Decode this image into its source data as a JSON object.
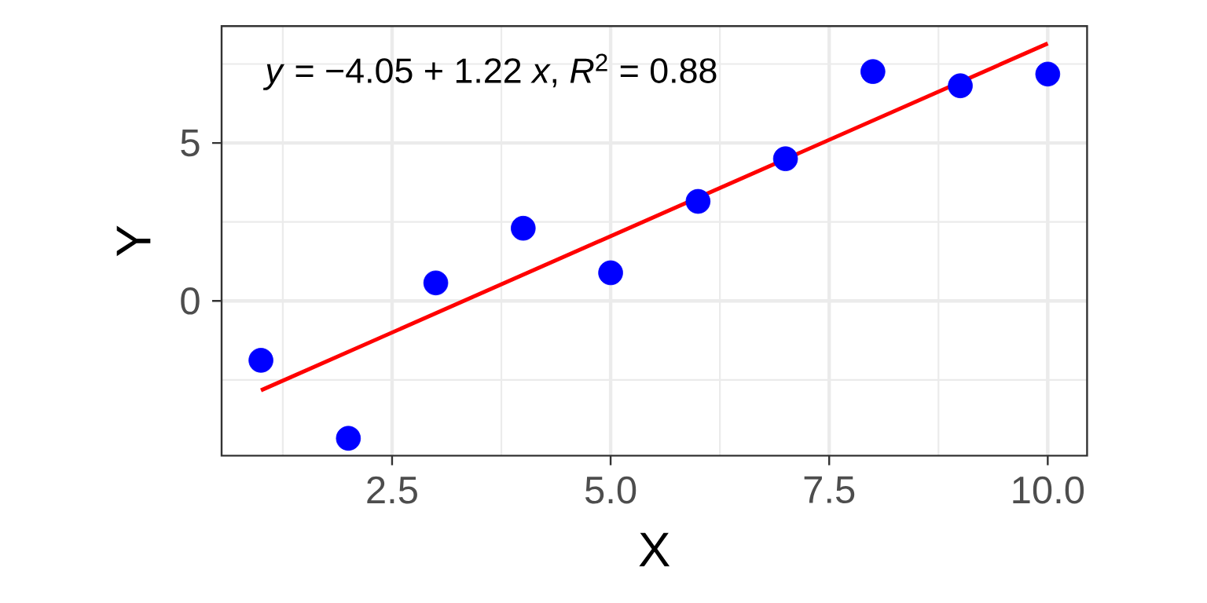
{
  "chart_data": {
    "type": "scatter",
    "xlabel": "X",
    "ylabel": "Y",
    "annotations": [
      "*y* = −4.05 + 1.22 *x*, *R*$^{2}$ = 0.88"
    ],
    "xlim": [
      0.55,
      10.45
    ],
    "ylim": [
      -4.9,
      8.7
    ],
    "xticks": [
      2.5,
      {
        "value": 5,
        "label": "5.0"
      },
      7.5,
      {
        "value": 10,
        "label": "10.0"
      }
    ],
    "yticks": [
      0,
      5
    ],
    "grid": true,
    "marker": "circle",
    "series": [
      {
        "color": "#0000ff",
        "x": [
          1,
          2,
          3,
          4,
          5,
          6,
          7,
          8,
          9,
          10
        ],
        "values": [
          -1.88,
          -4.35,
          0.57,
          2.3,
          0.89,
          3.15,
          4.5,
          7.26,
          6.81,
          7.18
        ]
      },
      {
        "type": "line",
        "color": "#ff0000",
        "marker": "none",
        "line_style": "solid",
        "x": [
          1,
          10
        ],
        "values": [
          -2.83,
          8.15
        ]
      }
    ]
  }
}
